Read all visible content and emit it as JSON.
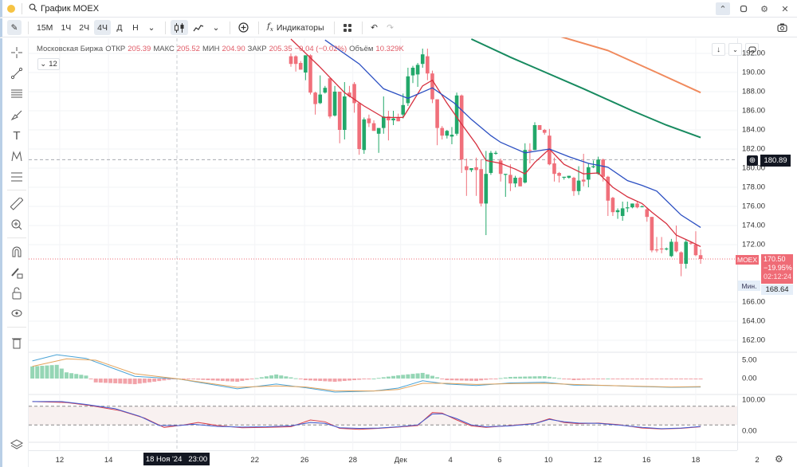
{
  "window": {
    "title": "График MOEX",
    "controls": [
      "chevron-up",
      "restore",
      "settings",
      "close"
    ]
  },
  "toolbar": {
    "intervals": [
      "15M",
      "1Ч",
      "2Ч",
      "4Ч",
      "Д",
      "Н"
    ],
    "active_interval": "4Ч",
    "indicators_label": "Индикаторы"
  },
  "legend": {
    "exchange": "Московская Биржа",
    "open_label": "ОТКР",
    "open": "205.39",
    "high_label": "МАКС",
    "high": "205.52",
    "low_label": "МИН",
    "low": "204.90",
    "close_label": "ЗАКР",
    "close": "205.35",
    "change": "−0.04 (−0.02%)",
    "volume_label": "Объём",
    "volume": "10.329K",
    "badge": "12"
  },
  "crosshair": {
    "price": "180.89",
    "time_date": "18 Ноя '24",
    "time_clock": "23:00"
  },
  "last_price": {
    "symbol": "MOEX",
    "price": "170.50",
    "change": "−19.95%",
    "countdown": "02:12:24"
  },
  "min_marker": {
    "label": "Мин.",
    "value": "168.64"
  },
  "colors": {
    "up": "#22a86a",
    "down": "#f0707b",
    "ema_fast": "#d6303f",
    "ema_mid": "#2b4fc2",
    "ema_slow": "#178a5f",
    "ema_long": "#f08a5d",
    "macd": "#4aa3d6",
    "signal": "#e3a35b",
    "hist_up": "#95d6b5",
    "hist_down": "#f2a3a9",
    "stoch_k": "#3f5bd1",
    "stoch_d": "#d9404c"
  },
  "chart_data": {
    "type": "candlestick",
    "price_ticks": [
      "192.00",
      "190.00",
      "188.00",
      "186.00",
      "184.00",
      "182.00",
      "180.00",
      "178.00",
      "176.00",
      "174.00",
      "172.00",
      "166.00",
      "164.00",
      "162.00"
    ],
    "macd_ticks": [
      "5.00",
      "0.00"
    ],
    "stoch_ticks": [
      "100.00",
      "0.00"
    ],
    "x_labels": [
      {
        "t": "12",
        "bar": -47.4
      },
      {
        "t": "14",
        "bar": -37.4
      },
      {
        "t": "22",
        "bar": -7.4
      },
      {
        "t": "26",
        "bar": 2.8
      },
      {
        "t": "28",
        "bar": 12.7
      },
      {
        "t": "Дек",
        "bar": 22.5
      },
      {
        "t": "4",
        "bar": 32.7
      },
      {
        "t": "6",
        "bar": 42.8
      },
      {
        "t": "10",
        "bar": 52.8
      },
      {
        "t": "12",
        "bar": 62.9
      },
      {
        "t": "16",
        "bar": 72.9
      },
      {
        "t": "18",
        "bar": 83
      },
      {
        "t": "2",
        "bar": 95.6
      }
    ],
    "ohlc": [
      [
        191.7,
        192,
        190.6,
        190.9
      ],
      [
        191.7,
        191.8,
        190.1,
        190.9
      ],
      [
        191,
        191.2,
        190.3,
        190.3
      ],
      [
        190,
        191.8,
        189.2,
        191.8
      ],
      [
        191.8,
        191.9,
        187.7,
        187.9
      ],
      [
        187.9,
        188,
        185.6,
        186.7
      ],
      [
        186.8,
        189.7,
        186.7,
        187.7
      ],
      [
        187.9,
        188.6,
        187.8,
        188.4
      ],
      [
        189.4,
        189.4,
        185.2,
        185.4
      ],
      [
        185.5,
        188.6,
        185.4,
        188
      ],
      [
        188,
        188,
        182.6,
        184
      ],
      [
        184,
        189,
        183,
        187.5
      ],
      [
        187.9,
        188.6,
        187.4,
        187.5
      ],
      [
        188.8,
        189,
        185.8,
        186.8
      ],
      [
        186.8,
        186.8,
        181.4,
        182
      ],
      [
        181.9,
        185.3,
        181.5,
        185.1
      ],
      [
        185.2,
        185.6,
        184.3,
        184.7
      ],
      [
        184.7,
        185,
        183.9,
        183.9
      ],
      [
        183.6,
        184,
        181.6,
        184.2
      ],
      [
        184.2,
        187.5,
        183.6,
        185.4
      ],
      [
        185.4,
        186,
        182.9,
        185
      ],
      [
        185,
        186,
        184.5,
        185.2
      ],
      [
        185.3,
        185.7,
        184.9,
        184.9
      ],
      [
        185.6,
        187.8,
        185.2,
        186.6
      ],
      [
        186.8,
        190.5,
        186.5,
        189.6
      ],
      [
        189.7,
        190.7,
        188.9,
        190.5
      ],
      [
        189.8,
        191,
        188.5,
        190.8
      ],
      [
        190.9,
        192.5,
        190.5,
        191.9
      ],
      [
        191.7,
        192.5,
        189.2,
        189.9
      ],
      [
        189.9,
        190.2,
        186.8,
        187.2
      ],
      [
        187.2,
        187.2,
        182.4,
        184.2
      ],
      [
        184.2,
        184.4,
        183,
        183.4
      ],
      [
        183.4,
        184,
        183.1,
        183.9
      ],
      [
        183.3,
        184.3,
        182.5,
        183.5
      ],
      [
        183.6,
        187.9,
        183.4,
        187.6
      ],
      [
        187.6,
        187.7,
        179.5,
        180.9
      ],
      [
        180.2,
        181,
        177.1,
        179.8
      ],
      [
        179.8,
        180,
        179.6,
        180
      ],
      [
        180.1,
        181.1,
        177.1,
        179.8
      ],
      [
        179.9,
        180.9,
        176,
        176.3
      ],
      [
        176.3,
        181.8,
        173,
        179.4
      ],
      [
        179.5,
        181.8,
        179.3,
        181.6
      ],
      [
        181.5,
        181.8,
        181.4,
        181.6
      ],
      [
        180.8,
        181,
        178.6,
        179.4
      ],
      [
        179.3,
        179.4,
        177,
        179.4
      ],
      [
        179.3,
        180.4,
        177.6,
        178.4
      ],
      [
        178.4,
        179.2,
        178,
        179
      ],
      [
        179,
        179.1,
        178.1,
        178.1
      ],
      [
        178.5,
        182.6,
        178.4,
        181.9
      ],
      [
        181.9,
        182.6,
        180.5,
        181.8
      ],
      [
        181.9,
        184.8,
        181.9,
        184.5
      ],
      [
        184.5,
        184.5,
        184,
        184
      ],
      [
        184,
        184.1,
        183.5,
        183.7
      ],
      [
        183.4,
        184.1,
        180.3,
        180.4
      ],
      [
        180.5,
        181.1,
        178.6,
        179.4
      ],
      [
        179.5,
        179.6,
        178.5,
        179.2
      ],
      [
        179,
        179.1,
        178.8,
        179.1
      ],
      [
        179,
        179.2,
        178.9,
        179.2
      ],
      [
        179,
        179.1,
        177.1,
        177.6
      ],
      [
        177.6,
        180.2,
        177.2,
        178.7
      ],
      [
        178.8,
        181.5,
        178.1,
        178.6
      ],
      [
        178.8,
        180.5,
        178,
        180.1
      ],
      [
        180.1,
        180.8,
        180,
        180.2
      ],
      [
        179.4,
        181.2,
        179.3,
        180.9
      ],
      [
        180.9,
        181,
        178.6,
        179.1
      ],
      [
        179.1,
        179.2,
        175,
        176.6
      ],
      [
        176.9,
        177,
        175,
        175.4
      ],
      [
        175.4,
        175.8,
        174.7,
        175.6
      ],
      [
        175,
        176.5,
        174.5,
        175.8
      ],
      [
        175.8,
        176.5,
        175.4,
        175.9
      ],
      [
        175.9,
        176.3,
        175.8,
        176.3
      ],
      [
        176.3,
        176.5,
        175.8,
        175.9
      ],
      [
        176,
        176.1,
        175.9,
        176
      ],
      [
        175.7,
        175.9,
        174.4,
        174.9
      ],
      [
        174.9,
        174.9,
        171.2,
        171.4
      ],
      [
        171.5,
        172.8,
        171.2,
        171.4
      ],
      [
        171.6,
        172.8,
        171.1,
        171.5
      ],
      [
        171.5,
        171.7,
        171.4,
        171.6
      ],
      [
        170.8,
        172.6,
        170.7,
        172.3
      ],
      [
        172.3,
        174,
        171.2,
        171.3
      ],
      [
        171.2,
        171.3,
        168.7,
        170
      ],
      [
        170,
        172.5,
        169.5,
        172.3
      ],
      [
        172.2,
        172.3,
        172,
        172.1
      ],
      [
        172,
        173.4,
        170.8,
        170.9
      ],
      [
        170.9,
        171.5,
        170,
        170.5
      ]
    ],
    "ma_lines": [
      {
        "name": "ema_fast",
        "points": [
          [
            0,
            193.5
          ],
          [
            5.7,
            190.7
          ],
          [
            11,
            187.9
          ],
          [
            15,
            186.5
          ],
          [
            19,
            185.3
          ],
          [
            23,
            185.3
          ],
          [
            27,
            188.6
          ],
          [
            29,
            189.2
          ],
          [
            32,
            186.8
          ],
          [
            35,
            184.6
          ],
          [
            38,
            182.5
          ],
          [
            40,
            180.8
          ],
          [
            43,
            180.5
          ],
          [
            46,
            179.9
          ],
          [
            48,
            179.4
          ],
          [
            50,
            180.6
          ],
          [
            53,
            182
          ],
          [
            56,
            180.4
          ],
          [
            60,
            179.4
          ],
          [
            63,
            179.5
          ],
          [
            66,
            178
          ],
          [
            69,
            177
          ],
          [
            72,
            176.3
          ],
          [
            74,
            175.4
          ],
          [
            77,
            174.2
          ],
          [
            79,
            173
          ],
          [
            82,
            172.3
          ],
          [
            84,
            171.8
          ]
        ]
      },
      {
        "name": "ema_mid",
        "points": [
          [
            7,
            193.4
          ],
          [
            14,
            190.9
          ],
          [
            19,
            188.3
          ],
          [
            24,
            187.3
          ],
          [
            29,
            188.4
          ],
          [
            33.5,
            186.8
          ],
          [
            37,
            185.1
          ],
          [
            41,
            183.4
          ],
          [
            43,
            182.7
          ],
          [
            48,
            181.6
          ],
          [
            53,
            182
          ],
          [
            57,
            181.2
          ],
          [
            61,
            180.5
          ],
          [
            65,
            180.1
          ],
          [
            69,
            178.7
          ],
          [
            72,
            178.2
          ],
          [
            75,
            177.6
          ],
          [
            80,
            175.1
          ],
          [
            84,
            173.8
          ]
        ]
      },
      {
        "name": "ema_slow",
        "points": [
          [
            37,
            193.5
          ],
          [
            45,
            191.6
          ],
          [
            50,
            190.5
          ],
          [
            60,
            188.3
          ],
          [
            70,
            186
          ],
          [
            77,
            184.5
          ],
          [
            84,
            183.2
          ]
        ]
      },
      {
        "name": "ema_long",
        "points": [
          [
            55,
            193.8
          ],
          [
            65,
            192.3
          ],
          [
            75,
            190
          ],
          [
            84,
            187.9
          ]
        ]
      }
    ],
    "macd": [
      [
        -53,
        4.8
      ],
      [
        -48,
        6.5
      ],
      [
        -42,
        5.5
      ],
      [
        -32,
        0.6
      ],
      [
        -23,
        -0.1
      ],
      [
        -11,
        -2.8
      ],
      [
        -3,
        -1.5
      ],
      [
        3,
        -2.5
      ],
      [
        9,
        -3.7
      ],
      [
        17,
        -3.4
      ],
      [
        22,
        -2.6
      ],
      [
        27,
        -0.6
      ],
      [
        32,
        -1.5
      ],
      [
        38,
        -1.9
      ],
      [
        45,
        -1.2
      ],
      [
        52,
        -1.0
      ],
      [
        58,
        -1.8
      ],
      [
        65,
        -1.9
      ],
      [
        72,
        -2.2
      ],
      [
        78,
        -2.4
      ],
      [
        84,
        -2.3
      ]
    ],
    "signal": [
      [
        -53,
        3.3
      ],
      [
        -46,
        5.4
      ],
      [
        -40,
        5.0
      ],
      [
        -32,
        1.3
      ],
      [
        -23,
        -0.1
      ],
      [
        -11,
        -2.4
      ],
      [
        -3,
        -2.0
      ],
      [
        3,
        -2.3
      ],
      [
        9,
        -3.3
      ],
      [
        17,
        -3.4
      ],
      [
        22,
        -3.0
      ],
      [
        27,
        -1.3
      ],
      [
        32,
        -1.3
      ],
      [
        38,
        -1.6
      ],
      [
        45,
        -1.4
      ],
      [
        52,
        -1.3
      ],
      [
        58,
        -1.6
      ],
      [
        65,
        -1.9
      ],
      [
        72,
        -2.1
      ],
      [
        78,
        -2.3
      ],
      [
        84,
        -2.2
      ]
    ],
    "stoch_k": [
      [
        -53,
        95
      ],
      [
        -47,
        95
      ],
      [
        -42,
        86
      ],
      [
        -36,
        72
      ],
      [
        -31,
        48
      ],
      [
        -27,
        18
      ],
      [
        -23,
        18
      ],
      [
        -20,
        22
      ],
      [
        -15,
        15
      ],
      [
        -10,
        13
      ],
      [
        -5,
        14
      ],
      [
        0,
        17
      ],
      [
        4,
        28
      ],
      [
        7,
        25
      ],
      [
        10,
        11
      ],
      [
        14,
        9
      ],
      [
        18,
        10
      ],
      [
        22,
        14
      ],
      [
        26,
        20
      ],
      [
        29,
        55
      ],
      [
        31,
        56
      ],
      [
        34,
        40
      ],
      [
        37,
        20
      ],
      [
        40,
        14
      ],
      [
        45,
        17
      ],
      [
        50,
        24
      ],
      [
        53,
        38
      ],
      [
        56,
        30
      ],
      [
        59,
        26
      ],
      [
        63,
        25
      ],
      [
        67,
        20
      ],
      [
        72,
        12
      ],
      [
        76,
        8
      ],
      [
        80,
        10
      ],
      [
        84,
        15
      ]
    ],
    "stoch_d": [
      [
        -53,
        95
      ],
      [
        -46,
        92
      ],
      [
        -41,
        82
      ],
      [
        -35,
        66
      ],
      [
        -30,
        42
      ],
      [
        -26,
        12
      ],
      [
        -22,
        20
      ],
      [
        -19,
        28
      ],
      [
        -15,
        18
      ],
      [
        -10,
        11
      ],
      [
        -5,
        12
      ],
      [
        0,
        14
      ],
      [
        4,
        36
      ],
      [
        7,
        30
      ],
      [
        10,
        9
      ],
      [
        14,
        6
      ],
      [
        18,
        9
      ],
      [
        22,
        13
      ],
      [
        26,
        18
      ],
      [
        29,
        60
      ],
      [
        31,
        58
      ],
      [
        34,
        36
      ],
      [
        37,
        17
      ],
      [
        40,
        12
      ],
      [
        45,
        18
      ],
      [
        50,
        25
      ],
      [
        53,
        40
      ],
      [
        56,
        28
      ],
      [
        59,
        24
      ],
      [
        63,
        26
      ],
      [
        67,
        21
      ],
      [
        72,
        10
      ],
      [
        76,
        7
      ],
      [
        80,
        9
      ],
      [
        84,
        14
      ]
    ],
    "stoch_bands": [
      80,
      20
    ],
    "ylim": [
      160.5,
      193.5
    ]
  }
}
